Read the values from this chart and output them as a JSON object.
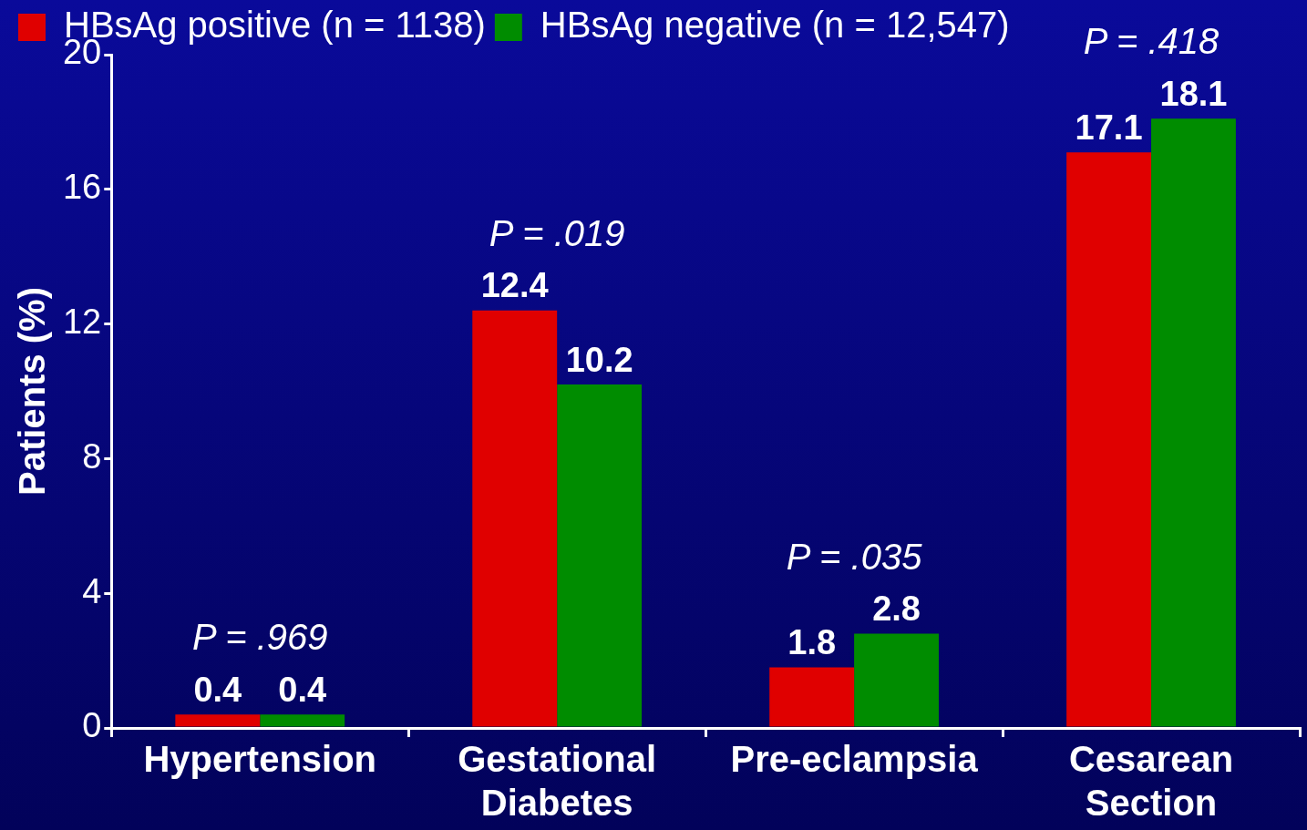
{
  "chart_data": {
    "type": "bar",
    "ylabel": "Patients (%)",
    "categories": [
      "Hypertension",
      "Gestational Diabetes",
      "Pre-eclampsia",
      "Cesarean Section"
    ],
    "series": [
      {
        "name": "HBsAg positive (n = 1138)",
        "color": "#e00000",
        "values": [
          0.4,
          12.4,
          1.8,
          17.1
        ]
      },
      {
        "name": "HBsAg negative (n = 12,547)",
        "color": "#008c00",
        "values": [
          0.4,
          10.2,
          2.8,
          18.1
        ]
      }
    ],
    "ylim": [
      0,
      20
    ],
    "yticks": [
      0,
      4,
      8,
      12,
      16,
      20
    ],
    "grid": false,
    "legend": "top left",
    "data_labels": true,
    "annotations": [
      "P = .969",
      "P = .019",
      "P = .035",
      "P = .418"
    ]
  }
}
